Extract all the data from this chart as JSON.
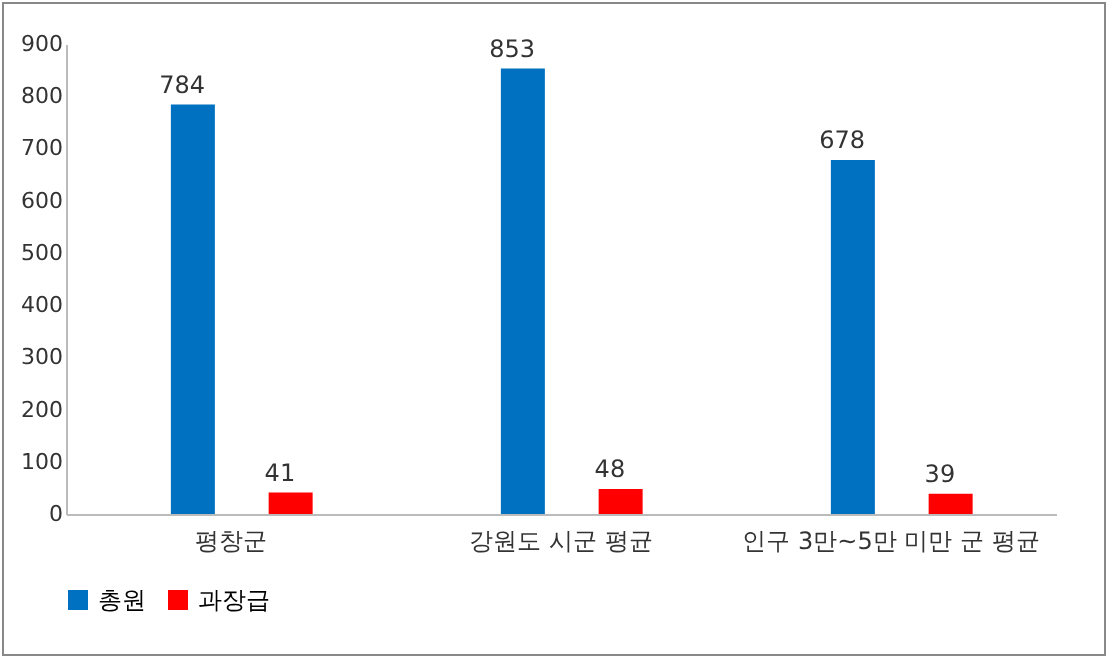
{
  "chart_data": {
    "type": "bar",
    "categories": [
      "평창군",
      "강원도 시군 평균",
      "인구 3만~5만 미만 군 평균"
    ],
    "series": [
      {
        "name": "총원",
        "color": "#0070c0",
        "values": [
          784,
          853,
          678
        ]
      },
      {
        "name": "과장급",
        "color": "#ff0000",
        "values": [
          41,
          48,
          39
        ]
      }
    ],
    "ylim": [
      0,
      900
    ],
    "yticks": [
      0,
      100,
      200,
      300,
      400,
      500,
      600,
      700,
      800,
      900
    ],
    "grid": false,
    "legend": "bottom",
    "data_labels": true
  }
}
